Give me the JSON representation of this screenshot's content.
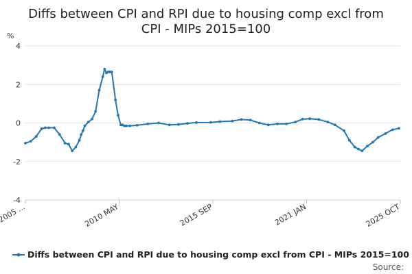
{
  "chart_data": {
    "type": "line",
    "title_lines": [
      "Diffs between CPI and RPI due to housing comp excl from",
      "CPI - MIPs 2015=100"
    ],
    "ylabel": "%",
    "ylim": [
      -4,
      4
    ],
    "y_ticks": [
      "4",
      "2",
      "0",
      "-2",
      "-4"
    ],
    "x_tick_labels": [
      "2005 ...",
      "2010 MAY",
      "2015 SEP",
      "2021 JAN",
      "2025 OCT"
    ],
    "grid": true,
    "legend_position": "bottom",
    "series_color": "#1f77b4",
    "series": [
      {
        "name": "Diffs between CPI and RPI due to housing comp excl from CPI - MIPs 2015=100",
        "x": [
          2005.0,
          2005.3,
          2005.6,
          2005.9,
          2006.1,
          2006.3,
          2006.6,
          2006.9,
          2007.2,
          2007.4,
          2007.6,
          2007.8,
          2008.0,
          2008.1,
          2008.2,
          2008.3,
          2008.5,
          2008.7,
          2008.9,
          2009.1,
          2009.3,
          2009.4,
          2009.5,
          2009.6,
          2009.7,
          2009.8,
          2010.0,
          2010.15,
          2010.3,
          2010.4,
          2010.5,
          2010.6,
          2010.8,
          2011.2,
          2011.8,
          2012.4,
          2013.0,
          2013.5,
          2014.0,
          2014.5,
          2015.3,
          2015.8,
          2016.5,
          2017.0,
          2017.5,
          2018.0,
          2018.5,
          2019.0,
          2019.5,
          2020.0,
          2020.4,
          2020.8,
          2021.3,
          2021.8,
          2022.2,
          2022.7,
          2023.0,
          2023.3,
          2023.5,
          2023.7,
          2024.0,
          2024.3,
          2024.6,
          2025.0,
          2025.4,
          2025.75
        ],
        "values": [
          -1.05,
          -0.95,
          -0.7,
          -0.3,
          -0.25,
          -0.25,
          -0.25,
          -0.6,
          -1.05,
          -1.1,
          -1.45,
          -1.25,
          -0.9,
          -0.6,
          -0.4,
          -0.15,
          0.05,
          0.2,
          0.6,
          1.7,
          2.4,
          2.8,
          2.6,
          2.65,
          2.65,
          2.65,
          1.2,
          0.4,
          -0.1,
          -0.1,
          -0.15,
          -0.15,
          -0.15,
          -0.12,
          -0.05,
          0.0,
          -0.1,
          -0.08,
          -0.02,
          0.02,
          0.03,
          0.07,
          0.1,
          0.18,
          0.15,
          0.0,
          -0.1,
          -0.05,
          -0.05,
          0.05,
          0.2,
          0.22,
          0.18,
          0.05,
          -0.1,
          -0.4,
          -0.9,
          -1.25,
          -1.35,
          -1.45,
          -1.2,
          -1.0,
          -0.75,
          -0.55,
          -0.35,
          -0.28
        ]
      }
    ]
  },
  "legend": {
    "label": "Diffs between CPI and RPI due to housing comp excl from CPI - MIPs 2015=100"
  },
  "source_label": "Source:"
}
